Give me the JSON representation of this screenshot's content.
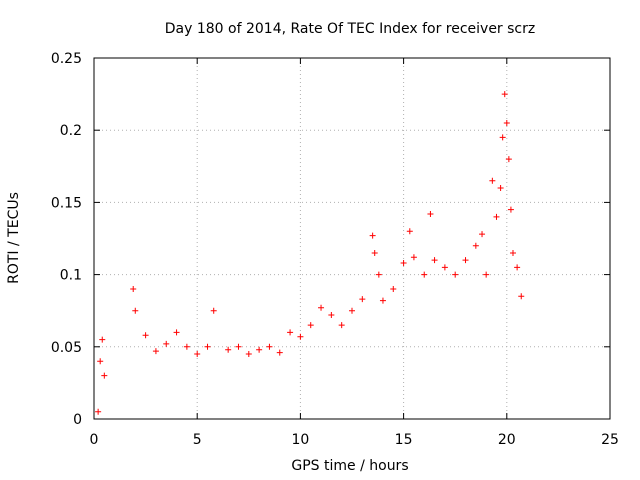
{
  "chart_data": {
    "type": "scatter",
    "title": "Day 180 of 2014, Rate Of TEC Index for receiver scrz",
    "xlabel": "GPS time / hours",
    "ylabel": "ROTI / TECUs",
    "xlim": [
      0,
      25
    ],
    "ylim": [
      0,
      0.25
    ],
    "xticks": [
      0,
      5,
      10,
      15,
      20,
      25
    ],
    "yticks": [
      0,
      0.05,
      0.1,
      0.15,
      0.2,
      0.25
    ],
    "xtick_labels": [
      "0",
      "5",
      "10",
      "15",
      "20",
      "25"
    ],
    "ytick_labels": [
      "0",
      "0.05",
      "0.1",
      "0.15",
      "0.2",
      "0.25"
    ],
    "grid": true,
    "marker": "+",
    "color": "#ff0000",
    "series": [
      {
        "name": "ROTI",
        "x": [
          0.2,
          0.3,
          0.4,
          0.5,
          1.9,
          2.0,
          2.5,
          3.0,
          3.5,
          4.0,
          4.5,
          5.0,
          5.5,
          5.8,
          6.5,
          7.0,
          7.5,
          8.0,
          8.5,
          9.0,
          9.5,
          10.0,
          10.5,
          11.0,
          11.5,
          12.0,
          12.5,
          13.0,
          13.5,
          13.6,
          13.8,
          14.0,
          14.5,
          15.0,
          15.3,
          15.5,
          16.0,
          16.3,
          16.5,
          17.0,
          17.5,
          18.0,
          18.5,
          18.8,
          19.0,
          19.3,
          19.5,
          19.7,
          19.8,
          19.9,
          20.0,
          20.1,
          20.2,
          20.3,
          20.5,
          20.7
        ],
        "y": [
          0.005,
          0.04,
          0.055,
          0.03,
          0.09,
          0.075,
          0.058,
          0.047,
          0.052,
          0.06,
          0.05,
          0.045,
          0.05,
          0.075,
          0.048,
          0.05,
          0.045,
          0.048,
          0.05,
          0.046,
          0.06,
          0.057,
          0.065,
          0.077,
          0.072,
          0.065,
          0.075,
          0.083,
          0.127,
          0.115,
          0.1,
          0.082,
          0.09,
          0.108,
          0.13,
          0.112,
          0.1,
          0.142,
          0.11,
          0.105,
          0.1,
          0.11,
          0.12,
          0.128,
          0.1,
          0.165,
          0.14,
          0.16,
          0.195,
          0.225,
          0.205,
          0.18,
          0.145,
          0.115,
          0.105,
          0.085
        ]
      }
    ]
  }
}
